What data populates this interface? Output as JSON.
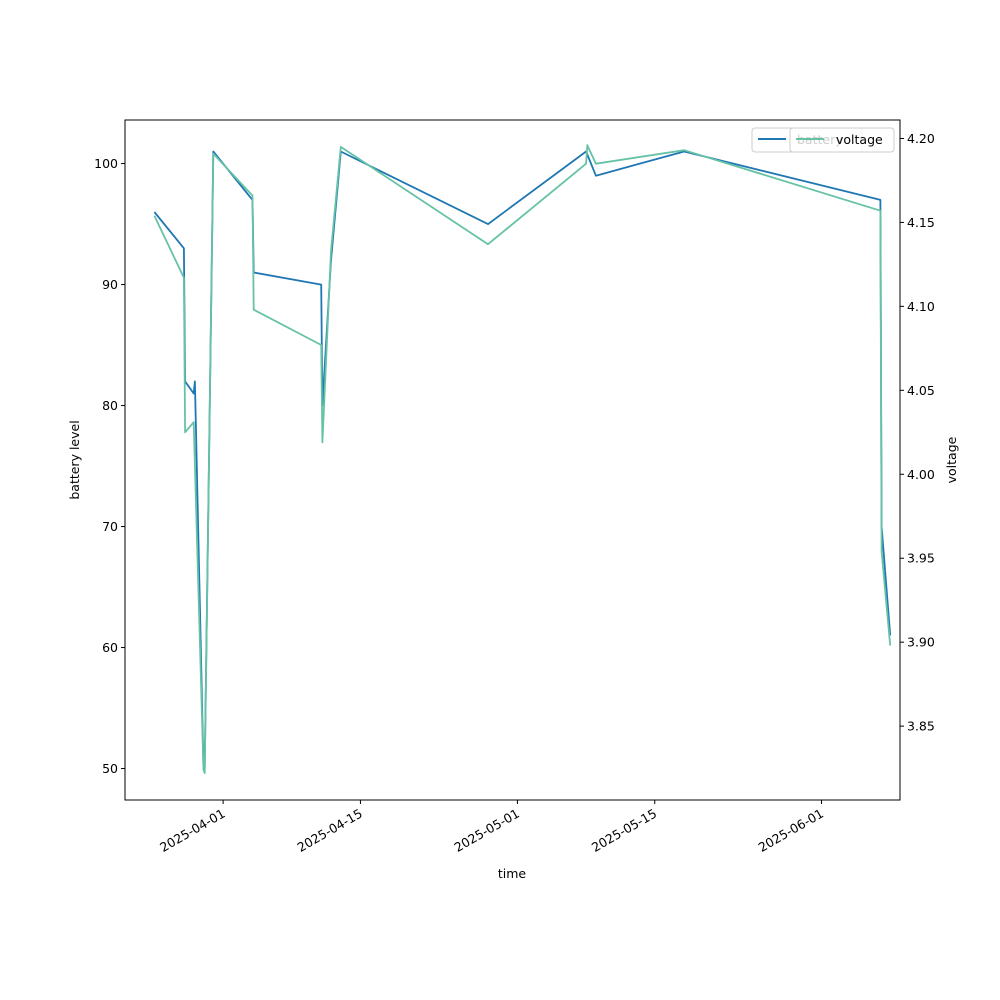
{
  "chart_data": {
    "type": "line",
    "xlabel": "time",
    "ylabel_left": "battery level",
    "ylabel_right": "voltage",
    "x_range": [
      "2025-03-22",
      "2025-06-09"
    ],
    "y_left_range": [
      47.4,
      103.6
    ],
    "y_right_range": [
      3.806,
      4.211
    ],
    "x_ticks": [
      "2025-04-01",
      "2025-04-15",
      "2025-05-01",
      "2025-05-15",
      "2025-06-01"
    ],
    "y_left_ticks": [
      50,
      60,
      70,
      80,
      90,
      100
    ],
    "y_right_ticks": [
      "3.85",
      "3.90",
      "3.95",
      "4.00",
      "4.05",
      "4.10",
      "4.15",
      "4.20"
    ],
    "grid": false,
    "legend_left": {
      "label": "battery",
      "color": "#1f77b4",
      "placement": "top-right"
    },
    "legend_right": {
      "label": "voltage",
      "color": "#66c2a5",
      "placement": "top-right"
    },
    "series": [
      {
        "name": "battery",
        "axis": "left",
        "color": "#1f77b4",
        "points": [
          [
            "2025-03-25",
            96
          ],
          [
            "2025-03-28",
            93
          ],
          [
            "2025-03-28",
            82
          ],
          [
            "2025-03-29",
            81
          ],
          [
            "2025-03-29",
            82
          ],
          [
            "2025-03-30",
            50
          ],
          [
            "2025-03-30",
            50
          ],
          [
            "2025-03-31",
            101
          ],
          [
            "2025-04-04",
            97
          ],
          [
            "2025-04-04",
            91
          ],
          [
            "2025-04-11",
            90
          ],
          [
            "2025-04-11",
            80
          ],
          [
            "2025-04-12",
            92
          ],
          [
            "2025-04-13",
            101
          ],
          [
            "2025-04-28",
            95
          ],
          [
            "2025-05-08",
            101
          ],
          [
            "2025-05-09",
            99
          ],
          [
            "2025-05-18",
            101
          ],
          [
            "2025-06-07",
            97
          ],
          [
            "2025-06-07",
            70
          ],
          [
            "2025-06-08",
            61
          ]
        ]
      },
      {
        "name": "voltage",
        "axis": "right",
        "color": "#66c2a5",
        "points": [
          [
            "2025-03-25",
            4.154
          ],
          [
            "2025-03-28",
            4.117
          ],
          [
            "2025-03-28",
            4.025
          ],
          [
            "2025-03-29",
            4.031
          ],
          [
            "2025-03-30",
            3.824
          ],
          [
            "2025-03-30",
            3.822
          ],
          [
            "2025-03-31",
            4.191
          ],
          [
            "2025-04-04",
            4.166
          ],
          [
            "2025-04-04",
            4.098
          ],
          [
            "2025-04-11",
            4.077
          ],
          [
            "2025-04-11",
            4.019
          ],
          [
            "2025-04-12",
            4.133
          ],
          [
            "2025-04-13",
            4.195
          ],
          [
            "2025-04-28",
            4.137
          ],
          [
            "2025-05-08",
            4.185
          ],
          [
            "2025-05-08",
            4.196
          ],
          [
            "2025-05-09",
            4.185
          ],
          [
            "2025-05-18",
            4.193
          ],
          [
            "2025-06-07",
            4.157
          ],
          [
            "2025-06-07",
            3.954
          ],
          [
            "2025-06-08",
            3.898
          ]
        ]
      }
    ]
  }
}
